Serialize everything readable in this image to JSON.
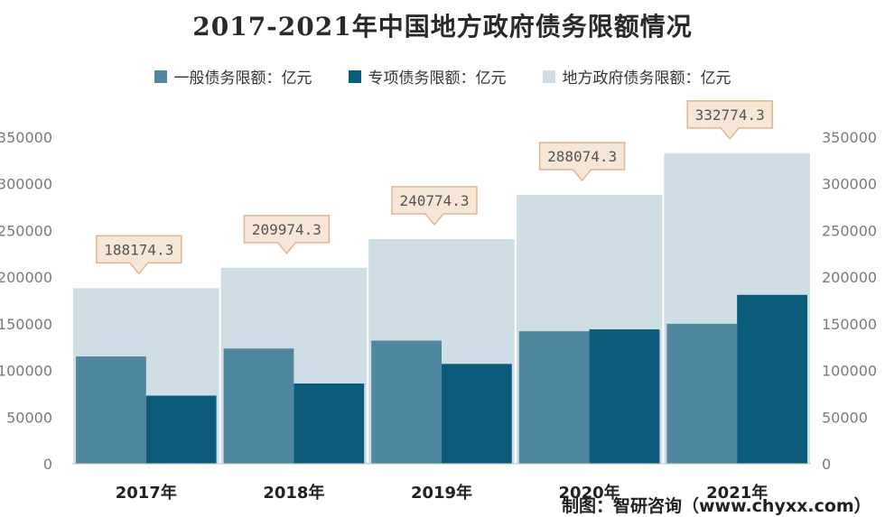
{
  "chart_data": {
    "type": "bar",
    "title": "2017-2021年中国地方政府债务限额情况",
    "categories": [
      "2017年",
      "2018年",
      "2019年",
      "2020年",
      "2021年"
    ],
    "series": [
      {
        "name": "一般债务限额：亿元",
        "color": "#4f87a0",
        "values": [
          115000,
          123500,
          132000,
          142000,
          150000
        ]
      },
      {
        "name": "专项债务限额：亿元",
        "color": "#0d5b7a",
        "values": [
          73000,
          86000,
          107000,
          144000,
          181000
        ]
      },
      {
        "name": "地方政府债务限额：亿元",
        "color": "#cfdde4",
        "values": [
          188174.3,
          209974.3,
          240774.3,
          288074.3,
          332774.3
        ]
      }
    ],
    "data_labels": [
      "188174.3",
      "209974.3",
      "240774.3",
      "288074.3",
      "332774.3"
    ],
    "ylim": [
      0,
      350000
    ],
    "yticks": [
      "0",
      "50000",
      "100000",
      "150000",
      "200000",
      "250000",
      "300000",
      "350000"
    ],
    "xlabel": "",
    "ylabel": "",
    "legend_position": "top",
    "grid": false,
    "dual_axis_labels": true
  },
  "source": "制图：智研咨询（www.chyxx.com）",
  "colors": {
    "callout_fill": "#f6e6d6",
    "callout_stroke": "#e2b48f",
    "axis_text": "#7a7a7a"
  }
}
